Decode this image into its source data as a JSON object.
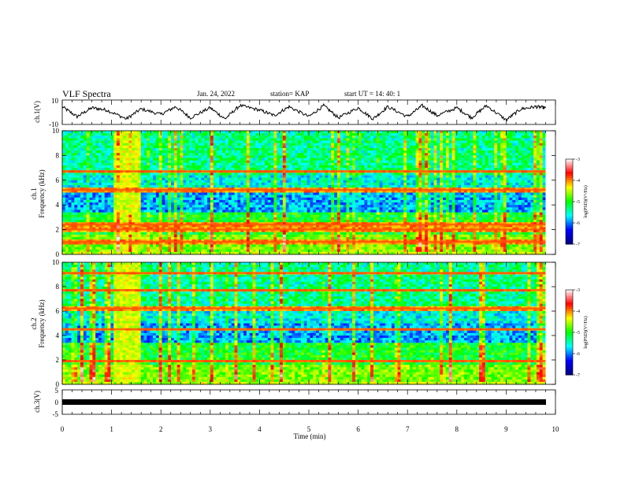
{
  "header": {
    "title": "VLF Spectra",
    "date": "Jan. 24, 2022",
    "station": "station= KAP",
    "start": "start UT =  14: 40: 1"
  },
  "chart_data": [
    {
      "id": "ch1-waveform",
      "type": "line",
      "ylabel": "ch.1(V)",
      "ylim": [
        -10,
        10
      ],
      "y_tick_labels": [
        "10",
        "-10"
      ],
      "xlim": [
        0,
        10
      ],
      "description_series": "noisy oscillating voltage trace",
      "x": [
        0,
        0.3,
        0.6,
        0.9,
        1.3,
        1.6,
        2.0,
        2.3,
        2.6,
        3.0,
        3.3,
        3.6,
        4.0,
        4.3,
        4.6,
        5.0,
        5.3,
        5.6,
        6.0,
        6.3,
        6.6,
        7.0,
        7.3,
        7.6,
        8.0,
        8.3,
        8.6,
        9.0,
        9.3,
        9.6,
        9.8
      ],
      "y": [
        5,
        -4,
        4,
        2,
        -6,
        3,
        -2,
        5,
        -5,
        4,
        -6,
        6,
        2,
        -3,
        5,
        -4,
        6,
        -5,
        4,
        -6,
        5,
        -4,
        6,
        -3,
        4,
        -5,
        6,
        -7,
        3,
        5,
        4
      ]
    },
    {
      "id": "ch1-spectrogram",
      "type": "heatmap",
      "ylabel": "ch.1\nFrequency (kHz)",
      "ylim": [
        0,
        10
      ],
      "y_tick_labels": [
        "0",
        "2",
        "4",
        "6",
        "8",
        "10"
      ],
      "xlim": [
        0,
        9.8
      ],
      "colorbar": {
        "label": "log(PSD)(V²/Hz)",
        "range": [
          -7,
          -3
        ],
        "tick_labels": [
          "-3",
          "-4",
          "-5",
          "-6",
          "-7"
        ]
      },
      "burst_x": [
        1.05,
        1.6
      ],
      "bands_khz": [
        1.0,
        2.0,
        2.4,
        5.2,
        6.7
      ]
    },
    {
      "id": "ch2-spectrogram",
      "type": "heatmap",
      "ylabel": "ch.2\nFrequency (kHz)",
      "ylim": [
        0,
        10
      ],
      "y_tick_labels": [
        "0",
        "2",
        "4",
        "6",
        "8",
        "10"
      ],
      "xlim": [
        0,
        9.8
      ],
      "colorbar": {
        "label": "log(PSD)(V²/Hz)",
        "range": [
          -7,
          -3
        ],
        "tick_labels": [
          "-3",
          "-4",
          "-5",
          "-6",
          "-7"
        ]
      },
      "burst_x": [
        1.05,
        1.6
      ],
      "bands_khz": [
        1.9,
        4.5,
        6.2,
        7.7,
        9.1
      ]
    },
    {
      "id": "ch3-waveform",
      "type": "line",
      "ylabel": "ch.3(V)",
      "ylim": [
        -5,
        5
      ],
      "y_tick_labels": [
        "5",
        "0",
        "-5"
      ],
      "xlim": [
        0,
        10
      ],
      "x": [
        0,
        9.8
      ],
      "y": [
        0,
        0
      ],
      "xlabel": "Time (min)",
      "x_tick_labels": [
        "0",
        "1",
        "2",
        "3",
        "4",
        "5",
        "6",
        "7",
        "8",
        "9",
        "10"
      ]
    }
  ],
  "colors": {
    "cmap": [
      "#00007f",
      "#0000ff",
      "#00ffff",
      "#00ff00",
      "#ffff00",
      "#ff0000",
      "#ffffff"
    ],
    "line": "#000000"
  }
}
